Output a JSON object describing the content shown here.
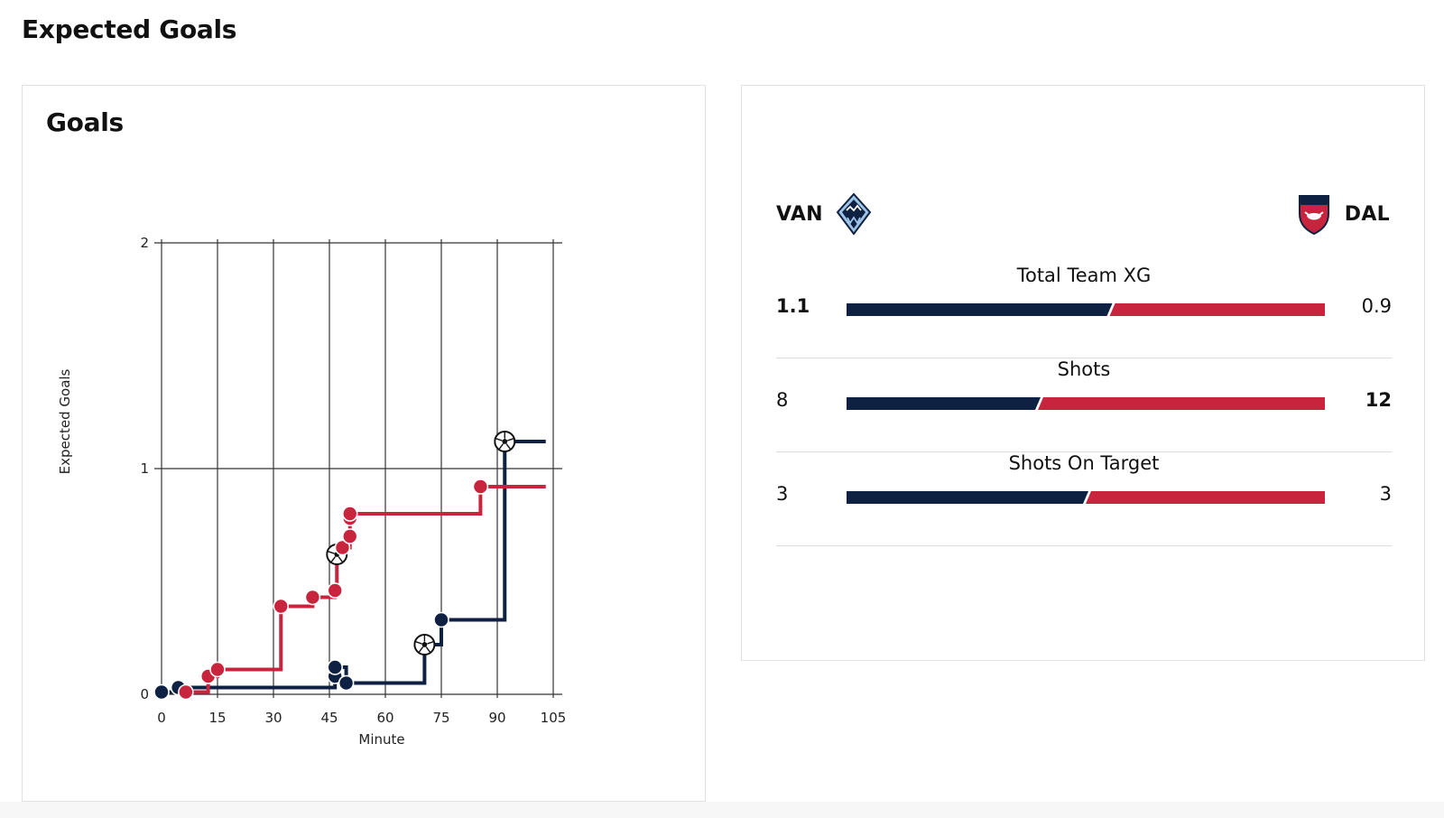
{
  "page": {
    "title": "Expected Goals"
  },
  "chart_panel": {
    "title": "Goals"
  },
  "chart_data": {
    "type": "line",
    "step": true,
    "title": "Goals",
    "xlabel": "Minute",
    "ylabel": "Expected Goals",
    "xlim": [
      0,
      105
    ],
    "ylim": [
      0,
      2
    ],
    "x_ticks": [
      0,
      15,
      30,
      45,
      60,
      75,
      90,
      105
    ],
    "y_ticks": [
      0,
      1,
      2
    ],
    "x_tick_labels": [
      "0",
      "15",
      "30",
      "45",
      "60",
      "75",
      "90",
      "105"
    ],
    "y_tick_labels": [
      "0",
      "1",
      "2"
    ],
    "grid": true,
    "series": [
      {
        "name": "VAN",
        "color": "#0f2143",
        "end_minute": 103,
        "shots": [
          {
            "minute": 0,
            "xg": 0.01
          },
          {
            "minute": 4.5,
            "xg": 0.03
          },
          {
            "minute": 46.5,
            "xg": 0.08
          },
          {
            "minute": 46.5,
            "xg": 0.12
          },
          {
            "minute": 49.5,
            "xg": 0.05
          },
          {
            "minute": 70.5,
            "xg": 0.22,
            "goal": true
          },
          {
            "minute": 75,
            "xg": 0.33
          },
          {
            "minute": 92,
            "xg": 1.12,
            "goal": true
          }
        ]
      },
      {
        "name": "DAL",
        "color": "#c8243d",
        "end_minute": 103,
        "shots": [
          {
            "minute": 6.5,
            "xg": 0.01
          },
          {
            "minute": 12.5,
            "xg": 0.08
          },
          {
            "minute": 15,
            "xg": 0.11
          },
          {
            "minute": 32,
            "xg": 0.39
          },
          {
            "minute": 40.5,
            "xg": 0.43
          },
          {
            "minute": 46.5,
            "xg": 0.46
          },
          {
            "minute": 47,
            "xg": 0.62,
            "goal": true
          },
          {
            "minute": 48.5,
            "xg": 0.65
          },
          {
            "minute": 50.5,
            "xg": 0.7
          },
          {
            "minute": 50.5,
            "xg": 0.78
          },
          {
            "minute": 50.5,
            "xg": 0.8
          },
          {
            "minute": 85.5,
            "xg": 0.92
          }
        ]
      }
    ]
  },
  "comparison": {
    "home": {
      "abbr": "VAN",
      "logo_icon": "whitecaps-logo-icon",
      "color": "#0f2143"
    },
    "away": {
      "abbr": "DAL",
      "logo_icon": "fc-dallas-logo-icon",
      "color": "#c8243d"
    },
    "stats": [
      {
        "label": "Total Team XG",
        "home": "1.1",
        "away": "0.9",
        "home_value": 1.1,
        "away_value": 0.9,
        "home_bold": true,
        "away_bold": false
      },
      {
        "label": "Shots",
        "home": "8",
        "away": "12",
        "home_value": 8,
        "away_value": 12,
        "home_bold": false,
        "away_bold": true
      },
      {
        "label": "Shots On Target",
        "home": "3",
        "away": "3",
        "home_value": 3,
        "away_value": 3,
        "home_bold": false,
        "away_bold": false
      }
    ]
  }
}
